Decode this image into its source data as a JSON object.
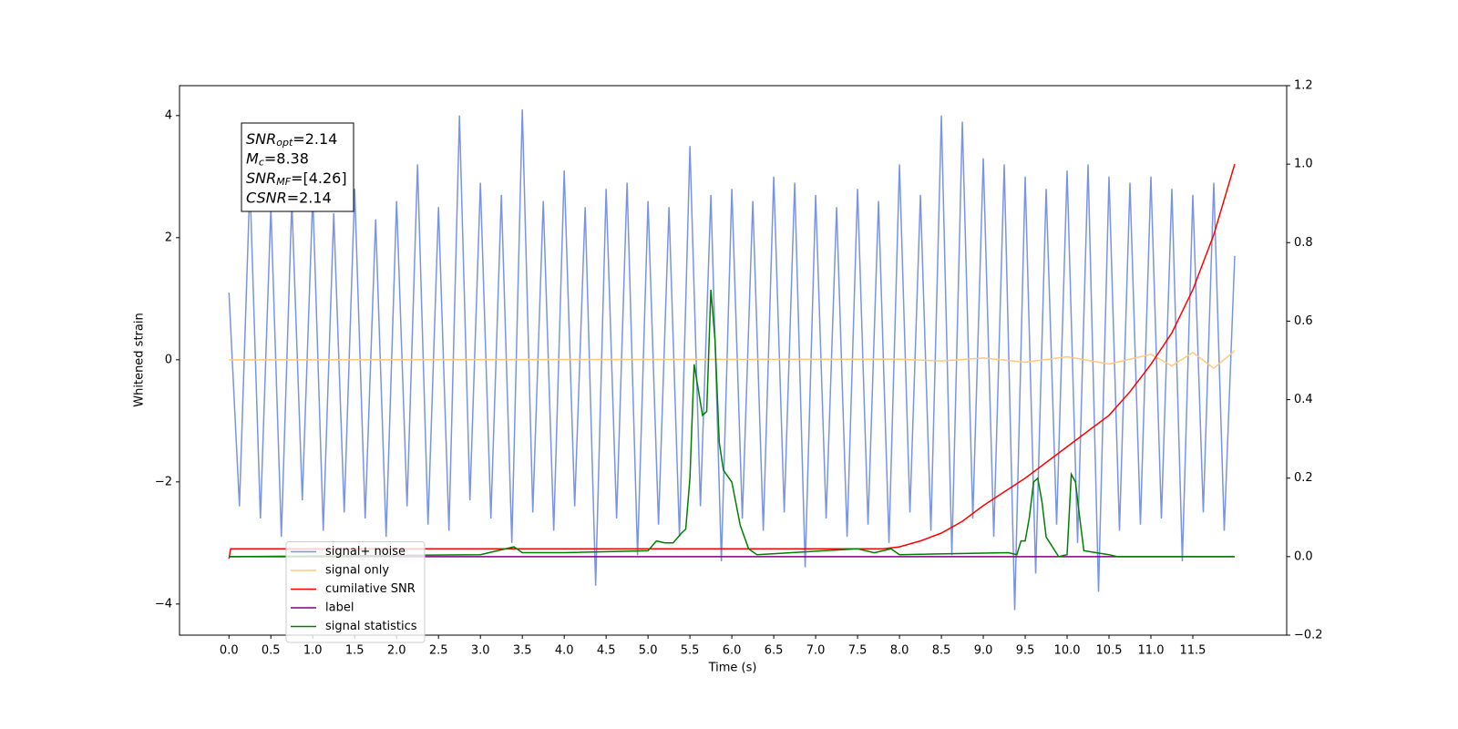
{
  "chart_data": {
    "type": "line",
    "xlabel": "Time (s)",
    "ylabel": "Whitened strain",
    "xlim": [
      -0.59,
      12.62
    ],
    "ylim": [
      -4.51,
      4.49
    ],
    "y2lim": [
      -0.2,
      1.2
    ],
    "xticks": [
      {
        "value": 0,
        "label": "0.0"
      },
      0.5,
      {
        "value": 1,
        "label": "1.0"
      },
      1.5,
      {
        "value": 2,
        "label": "2.0"
      },
      2.5,
      {
        "value": 3,
        "label": "3.0"
      },
      3.5,
      {
        "value": 4,
        "label": "4.0"
      },
      4.5,
      {
        "value": 5,
        "label": "5.0"
      },
      5.5,
      {
        "value": 6,
        "label": "6.0"
      },
      6.5,
      {
        "value": 7,
        "label": "7.0"
      },
      7.5,
      {
        "value": 8,
        "label": "8.0"
      },
      8.5,
      {
        "value": 9,
        "label": "9.0"
      },
      9.5,
      {
        "value": 10,
        "label": "10.0"
      },
      10.5,
      {
        "value": 11,
        "label": "11.0"
      },
      11.5
    ],
    "yticks": [
      {
        "value": -4,
        "label": "−4"
      },
      {
        "value": -2,
        "label": "−2"
      },
      0,
      2,
      4
    ],
    "y2ticks": [
      {
        "value": -0.2,
        "label": "−0.2"
      },
      {
        "value": 0,
        "label": "0.0"
      },
      0.2,
      0.4,
      0.6,
      0.8,
      {
        "value": 1,
        "label": "1.0"
      },
      1.2
    ],
    "grid": false,
    "legend_loc": "lower left",
    "annotations": [
      {
        "symbol": "SNR",
        "sub": "opt",
        "text": "=2.14"
      },
      {
        "symbol": "M",
        "sub": "c",
        "text": "=8.38"
      },
      {
        "symbol": "SNR",
        "sub": "MF",
        "text": "=[4.26]"
      },
      {
        "symbol": "CSNR",
        "sub": null,
        "text": "=2.14"
      }
    ],
    "series": [
      {
        "name": "signal+ noise",
        "color": "#7994e6",
        "axis": "y",
        "x": [
          0,
          0.125,
          0.25,
          0.375,
          0.5,
          0.625,
          0.75,
          0.875,
          1,
          1.125,
          1.25,
          1.375,
          1.5,
          1.625,
          1.75,
          1.875,
          2,
          2.125,
          2.25,
          2.375,
          2.5,
          2.625,
          2.75,
          2.875,
          3,
          3.125,
          3.25,
          3.375,
          3.5,
          3.625,
          3.75,
          3.875,
          4,
          4.125,
          4.25,
          4.375,
          4.5,
          4.625,
          4.75,
          4.875,
          5,
          5.125,
          5.25,
          5.375,
          5.5,
          5.625,
          5.75,
          5.875,
          6,
          6.125,
          6.25,
          6.375,
          6.5,
          6.625,
          6.75,
          6.875,
          7,
          7.125,
          7.25,
          7.375,
          7.5,
          7.625,
          7.75,
          7.875,
          8,
          8.125,
          8.25,
          8.375,
          8.5,
          8.625,
          8.75,
          8.875,
          9,
          9.125,
          9.25,
          9.375,
          9.5,
          9.625,
          9.75,
          9.875,
          10,
          10.125,
          10.25,
          10.375,
          10.5,
          10.625,
          10.75,
          10.875,
          11,
          11.125,
          11.25,
          11.375,
          11.5,
          11.625,
          11.75,
          11.875,
          12
        ],
        "values": [
          1.1,
          -2.4,
          2.9,
          -2.6,
          2.5,
          -2.9,
          2.6,
          -2.3,
          2.7,
          -2.8,
          2.4,
          -2.5,
          2.8,
          -2.6,
          2.3,
          -2.9,
          2.6,
          -2.4,
          3.2,
          -2.7,
          2.5,
          -2.8,
          4.0,
          -2.3,
          2.9,
          -2.6,
          2.7,
          -3.0,
          4.1,
          -2.5,
          2.6,
          -2.8,
          3.1,
          -2.4,
          2.5,
          -3.7,
          2.8,
          -2.6,
          2.9,
          -3.2,
          2.6,
          -2.7,
          2.5,
          -2.9,
          3.5,
          -2.4,
          2.7,
          -3.3,
          2.8,
          -2.6,
          2.6,
          -2.8,
          3.0,
          -2.5,
          2.9,
          -3.4,
          2.7,
          -2.6,
          2.5,
          -2.9,
          2.8,
          -2.7,
          2.6,
          -3.0,
          3.2,
          -2.5,
          2.7,
          -2.8,
          4.0,
          -3.2,
          3.9,
          -2.6,
          3.3,
          -2.9,
          3.2,
          -4.1,
          3.0,
          -3.5,
          2.8,
          -2.7,
          3.1,
          -3.0,
          3.2,
          -3.8,
          3.0,
          -2.8,
          2.9,
          -2.7,
          3.0,
          -2.6,
          2.8,
          -3.3,
          2.7,
          -2.5,
          2.9,
          -2.8,
          1.7
        ]
      },
      {
        "name": "signal only",
        "color": "#ffc87a",
        "axis": "y",
        "x": [
          0,
          8,
          8.5,
          9,
          9.5,
          10,
          10.5,
          11,
          11.25,
          11.5,
          11.75,
          12
        ],
        "values": [
          0,
          0.01,
          -0.02,
          0.03,
          -0.04,
          0.05,
          -0.07,
          0.09,
          -0.1,
          0.12,
          -0.14,
          0.15
        ]
      },
      {
        "name": "cumilative SNR",
        "color": "#ff0000",
        "axis": "y2",
        "x": [
          0,
          0.02,
          7.8,
          8,
          8.25,
          8.5,
          8.75,
          9,
          9.25,
          9.5,
          9.75,
          10,
          10.25,
          10.5,
          10.75,
          11,
          11.25,
          11.5,
          11.75,
          12
        ],
        "values": [
          -0.005,
          0.02,
          0.02,
          0.025,
          0.04,
          0.06,
          0.09,
          0.13,
          0.165,
          0.2,
          0.24,
          0.28,
          0.32,
          0.36,
          0.42,
          0.49,
          0.57,
          0.68,
          0.82,
          1.0
        ]
      },
      {
        "name": "label",
        "color": "#800080",
        "axis": "y2",
        "x": [
          0,
          12
        ],
        "values": [
          0,
          0
        ]
      },
      {
        "name": "signal statistics",
        "color": "#008000",
        "axis": "y2",
        "x": [
          0,
          3,
          3.4,
          3.5,
          4,
          5,
          5.1,
          5.2,
          5.3,
          5.4,
          5.45,
          5.5,
          5.55,
          5.65,
          5.7,
          5.75,
          5.8,
          5.85,
          5.9,
          6,
          6.1,
          6.2,
          6.3,
          7.5,
          7.7,
          7.9,
          8,
          9.3,
          9.4,
          9.45,
          9.5,
          9.55,
          9.6,
          9.65,
          9.7,
          9.75,
          9.9,
          10,
          10.05,
          10.1,
          10.15,
          10.2,
          10.5,
          10.6,
          12
        ],
        "values": [
          0,
          0.005,
          0.025,
          0.01,
          0.01,
          0.015,
          0.04,
          0.035,
          0.035,
          0.06,
          0.07,
          0.2,
          0.49,
          0.36,
          0.37,
          0.68,
          0.55,
          0.29,
          0.22,
          0.19,
          0.08,
          0.02,
          0.005,
          0.02,
          0.01,
          0.02,
          0.005,
          0.01,
          0.005,
          0.04,
          0.04,
          0.1,
          0.19,
          0.2,
          0.14,
          0.05,
          0,
          0.005,
          0.21,
          0.19,
          0.1,
          0.015,
          0.005,
          0,
          0
        ]
      }
    ]
  }
}
